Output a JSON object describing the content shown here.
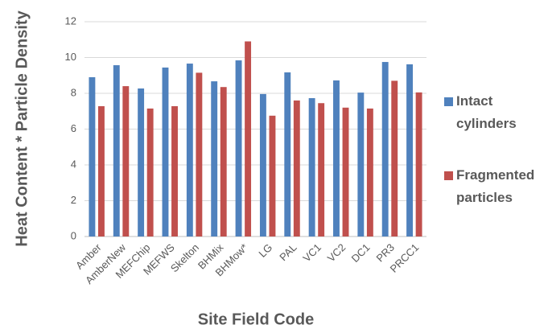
{
  "chart_data": {
    "type": "bar",
    "x_label": "Site Field Code",
    "y_label": "Heat Content * Particle Density",
    "categories": [
      "Amber",
      "AmberNew",
      "MEFChip",
      "MEFWS",
      "Skelton",
      "BHMix",
      "BHMow*",
      "LG",
      "PAL",
      "VC1",
      "VC2",
      "DC1",
      "PR3",
      "PRCC1"
    ],
    "series": [
      {
        "name": "Intact cylinders",
        "color": "#4f81bd",
        "values": [
          8.9,
          9.57,
          8.27,
          9.44,
          9.66,
          8.67,
          9.84,
          7.96,
          9.17,
          7.73,
          8.72,
          8.04,
          9.75,
          9.62
        ]
      },
      {
        "name": "Fragmented particles",
        "color": "#c0504d",
        "values": [
          7.28,
          8.4,
          7.15,
          7.28,
          9.15,
          8.35,
          10.9,
          6.75,
          7.6,
          7.45,
          7.2,
          7.15,
          8.7,
          8.05
        ]
      }
    ],
    "ylim": [
      0,
      12
    ],
    "yticks": [
      0,
      2,
      4,
      6,
      8,
      10,
      12
    ],
    "grid": true,
    "legend": "right"
  }
}
